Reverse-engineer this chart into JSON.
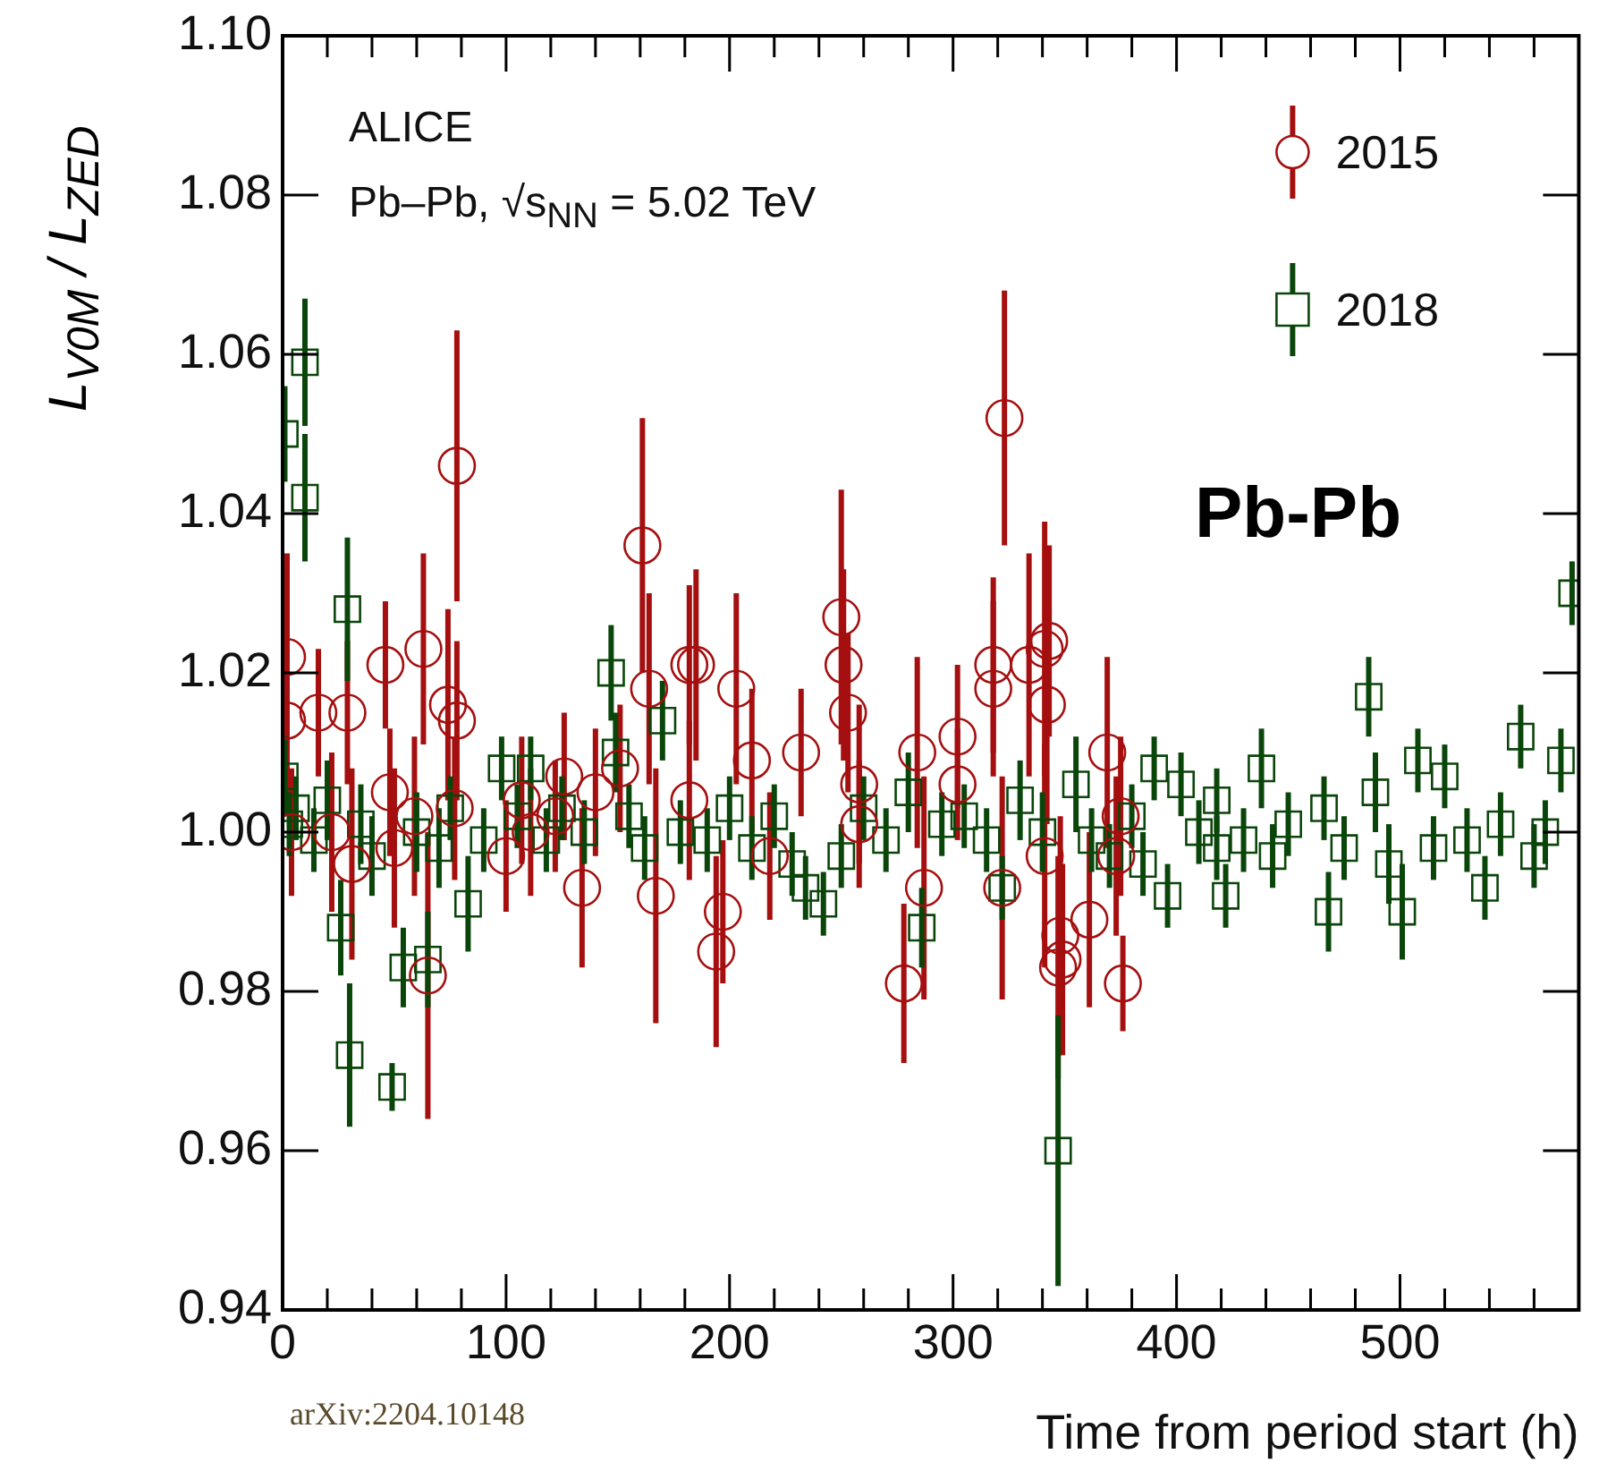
{
  "chart_data": {
    "type": "scatter",
    "xlabel": "Time from period start (h)",
    "ylabel": "L$_{V0M}$ / L$_{ZED}$",
    "annotations": [
      "ALICE",
      "Pb–Pb, √s$_{NN}$ = 5.02 TeV",
      "Pb-Pb",
      "arXiv:2204.10148"
    ],
    "xlim": [
      0,
      580
    ],
    "xticks": [
      0,
      {
        "value": 20,
        "label": null
      },
      {
        "value": 40,
        "label": null
      },
      {
        "value": 60,
        "label": null
      },
      {
        "value": 80,
        "label": null
      },
      100,
      {
        "value": 120,
        "label": null
      },
      {
        "value": 140,
        "label": null
      },
      {
        "value": 160,
        "label": null
      },
      {
        "value": 180,
        "label": null
      },
      200,
      {
        "value": 220,
        "label": null
      },
      {
        "value": 240,
        "label": null
      },
      {
        "value": 260,
        "label": null
      },
      {
        "value": 280,
        "label": null
      },
      300,
      {
        "value": 320,
        "label": null
      },
      {
        "value": 340,
        "label": null
      },
      {
        "value": 360,
        "label": null
      },
      {
        "value": 380,
        "label": null
      },
      400,
      {
        "value": 420,
        "label": null
      },
      {
        "value": 440,
        "label": null
      },
      {
        "value": 460,
        "label": null
      },
      {
        "value": 480,
        "label": null
      },
      500,
      {
        "value": 520,
        "label": null
      },
      {
        "value": 540,
        "label": null
      },
      {
        "value": 560,
        "label": null
      }
    ],
    "ylim": [
      0.94,
      1.1
    ],
    "yticks": [
      0.94,
      0.96,
      0.98,
      {
        "value": 1,
        "label": "1.00"
      },
      1.02,
      1.04,
      1.06,
      1.08,
      {
        "value": 1.1,
        "label": "1.10"
      }
    ],
    "grid": false,
    "legend": "top right",
    "series": [
      {
        "name": "2015",
        "color": "#a50f0f",
        "marker": "circle",
        "x": [
          2,
          2,
          4,
          16,
          22,
          29,
          31,
          46,
          48,
          50,
          59,
          63,
          65,
          74,
          77,
          78,
          78,
          90,
          100,
          107,
          111,
          122,
          126,
          134,
          140,
          151,
          161,
          164,
          167,
          182,
          182,
          185,
          194,
          197,
          203,
          210,
          218,
          232,
          250,
          251,
          253,
          258,
          258,
          278,
          284,
          287,
          302,
          302,
          318,
          318,
          322,
          323,
          334,
          341,
          341,
          342,
          343,
          347,
          348,
          349,
          361,
          369,
          373,
          375,
          376
        ],
        "values": [
          1.022,
          1.014,
          1.0,
          1.015,
          1.0,
          1.015,
          0.996,
          1.021,
          1.005,
          0.998,
          1.002,
          1.023,
          0.982,
          1.016,
          1.003,
          1.046,
          1.014,
          null,
          0.997,
          1.004,
          1.0,
          1.002,
          1.007,
          0.993,
          1.005,
          1.008,
          1.036,
          1.018,
          0.992,
          1.004,
          1.021,
          1.021,
          0.985,
          0.99,
          1.018,
          1.009,
          0.997,
          1.01,
          1.027,
          1.021,
          1.015,
          1.006,
          1.001,
          0.981,
          1.01,
          0.993,
          1.012,
          1.006,
          1.021,
          1.018,
          0.993,
          1.052,
          1.021,
          1.023,
          0.997,
          1.016,
          1.024,
          0.983,
          0.987,
          0.984,
          0.989,
          1.01,
          0.997,
          1.002,
          0.981
        ],
        "errors": [
          0.013,
          0.01,
          0.008,
          0.008,
          0.01,
          0.009,
          0.012,
          0.008,
          0.008,
          0.01,
          0.01,
          0.012,
          0.018,
          0.012,
          0.009,
          0.017,
          0.01,
          null,
          0.007,
          0.008,
          0.008,
          0.007,
          0.008,
          0.01,
          0.008,
          0.008,
          0.016,
          0.012,
          0.016,
          0.01,
          0.01,
          0.012,
          0.012,
          0.009,
          0.012,
          0.009,
          0.008,
          0.008,
          0.016,
          0.012,
          0.01,
          0.01,
          0.008,
          0.01,
          0.012,
          0.014,
          0.009,
          0.007,
          0.011,
          0.011,
          0.014,
          0.016,
          0.014,
          0.016,
          0.014,
          0.015,
          0.012,
          0.014,
          0.015,
          0.012,
          0.011,
          0.012,
          0.01,
          0.01,
          0.006
        ]
      },
      {
        "name": "2018",
        "color": "#0a460a",
        "marker": "square",
        "x": [
          1,
          1,
          3,
          6,
          10,
          10,
          14,
          20,
          26,
          29,
          30,
          35,
          40,
          49,
          54,
          60,
          65,
          70,
          75,
          83,
          90,
          98,
          105,
          111,
          118,
          125,
          135,
          147,
          149,
          155,
          162,
          170,
          178,
          190,
          200,
          210,
          220,
          228,
          234,
          242,
          250,
          260,
          270,
          280,
          286,
          295,
          305,
          315,
          322,
          330,
          340,
          347,
          355,
          362,
          370,
          380,
          385,
          390,
          396,
          402,
          410,
          418,
          418,
          422,
          430,
          438,
          443,
          450,
          466,
          468,
          475,
          486,
          489,
          495,
          501,
          508,
          515,
          520,
          530,
          538,
          545,
          554,
          560,
          565,
          572,
          577
        ],
        "values": [
          1.05,
          1.007,
          1.001,
          1.003,
          1.059,
          1.042,
          0.999,
          1.004,
          0.988,
          1.028,
          0.972,
          1.001,
          0.997,
          0.968,
          0.983,
          1.0,
          0.984,
          0.998,
          1.003,
          0.991,
          0.999,
          1.008,
          1.002,
          1.008,
          0.999,
          1.003,
          1.0,
          1.02,
          1.01,
          1.002,
          0.998,
          1.014,
          1.0,
          0.999,
          1.003,
          0.998,
          1.002,
          0.996,
          0.993,
          0.991,
          0.997,
          1.003,
          0.999,
          1.005,
          0.988,
          1.001,
          1.002,
          0.999,
          0.993,
          1.004,
          1.0,
          0.96,
          1.006,
          0.999,
          0.997,
          1.002,
          0.996,
          1.008,
          0.992,
          1.006,
          1.0,
          1.004,
          0.998,
          0.992,
          0.999,
          1.008,
          0.997,
          1.001,
          1.003,
          0.99,
          0.998,
          1.017,
          1.005,
          0.996,
          0.99,
          1.009,
          0.998,
          1.007,
          0.999,
          0.993,
          1.001,
          1.012,
          0.997,
          1.0,
          1.009,
          1.03
        ],
        "errors": [
          0.006,
          0.005,
          0.004,
          0.004,
          0.008,
          0.008,
          0.004,
          0.005,
          0.006,
          0.009,
          0.009,
          0.005,
          0.005,
          0.003,
          0.005,
          0.005,
          0.006,
          0.005,
          0.004,
          0.006,
          0.004,
          0.004,
          0.004,
          0.004,
          0.004,
          0.004,
          0.004,
          0.006,
          0.005,
          0.004,
          0.004,
          0.005,
          0.004,
          0.004,
          0.004,
          0.004,
          0.004,
          0.004,
          0.004,
          0.004,
          0.004,
          0.004,
          0.004,
          0.005,
          0.005,
          0.004,
          0.004,
          0.004,
          0.004,
          0.005,
          0.005,
          0.017,
          0.006,
          0.004,
          0.004,
          0.004,
          0.004,
          0.004,
          0.004,
          0.004,
          0.004,
          0.004,
          0.004,
          0.004,
          0.004,
          0.005,
          0.004,
          0.004,
          0.004,
          0.005,
          0.004,
          0.005,
          0.005,
          0.005,
          0.006,
          0.004,
          0.004,
          0.004,
          0.004,
          0.004,
          0.004,
          0.004,
          0.004,
          0.004,
          0.004,
          0.004
        ]
      }
    ]
  }
}
